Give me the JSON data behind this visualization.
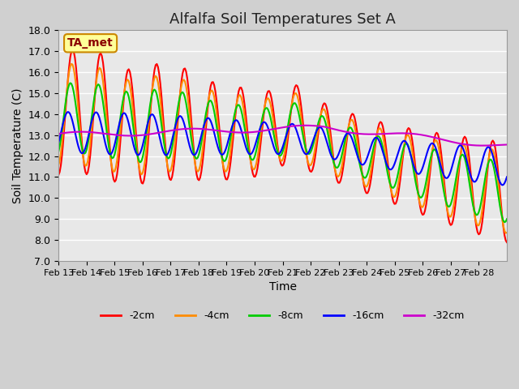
{
  "title": "Alfalfa Soil Temperatures Set A",
  "xlabel": "Time",
  "ylabel": "Soil Temperature (C)",
  "ylim": [
    7.0,
    18.0
  ],
  "yticks": [
    7.0,
    8.0,
    9.0,
    10.0,
    11.0,
    12.0,
    13.0,
    14.0,
    15.0,
    16.0,
    17.0,
    18.0
  ],
  "xtick_labels": [
    "Feb 13",
    "Feb 14",
    "Feb 15",
    "Feb 16",
    "Feb 17",
    "Feb 18",
    "Feb 19",
    "Feb 20",
    "Feb 21",
    "Feb 22",
    "Feb 23",
    "Feb 24",
    "Feb 25",
    "Feb 26",
    "Feb 27",
    "Feb 28"
  ],
  "line_colors": {
    "-2cm": "#ff0000",
    "-4cm": "#ff8c00",
    "-8cm": "#00cc00",
    "-16cm": "#0000ff",
    "-32cm": "#cc00cc"
  },
  "legend_label": "TA_met",
  "legend_box_color": "#ffff99",
  "legend_box_border": "#cc8800",
  "days": 16,
  "n_points": 384,
  "title_fontsize": 13
}
